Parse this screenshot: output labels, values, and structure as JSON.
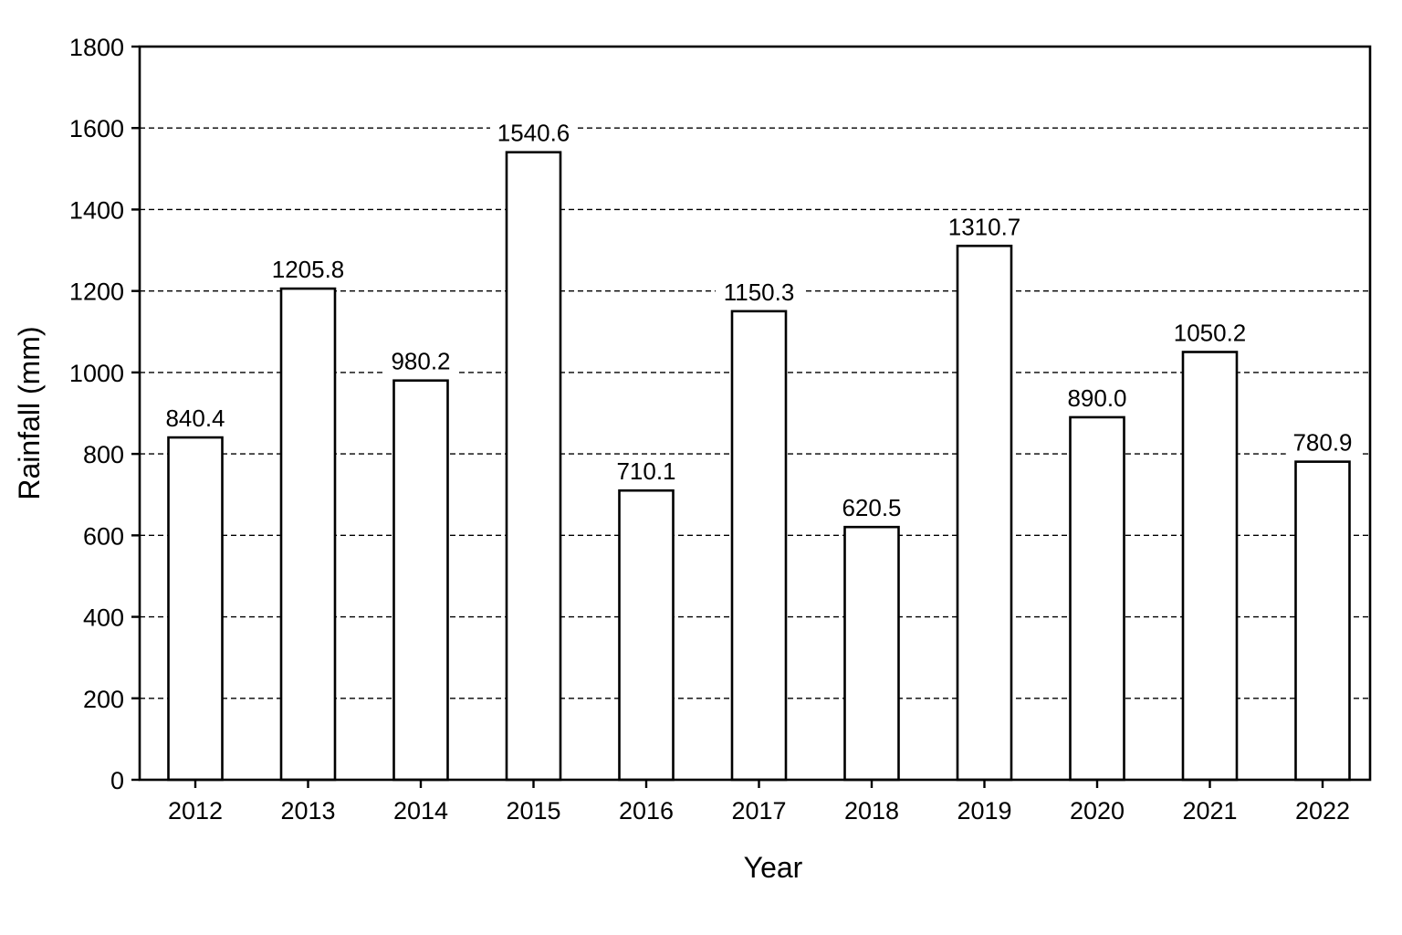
{
  "chart_data": {
    "type": "bar",
    "title": "",
    "xlabel": "Year",
    "ylabel": "Rainfall (mm)",
    "categories": [
      "2012",
      "2013",
      "2014",
      "2015",
      "2016",
      "2017",
      "2018",
      "2019",
      "2020",
      "2021",
      "2022"
    ],
    "values": [
      840.4,
      1205.8,
      980.2,
      1540.6,
      710.1,
      1150.3,
      620.5,
      1310.7,
      890.0,
      1050.2,
      780.9
    ],
    "value_labels": [
      "840.4",
      "1205.8",
      "980.2",
      "1540.6",
      "710.1",
      "1150.3",
      "620.5",
      "1310.7",
      "890.0",
      "1050.2",
      "780.9"
    ],
    "ylim": [
      0,
      1800
    ],
    "yticks": [
      "0",
      "200",
      "400",
      "600",
      "800",
      "1000",
      "1200",
      "1400",
      "1600",
      "1800"
    ],
    "grid": true,
    "grid_style": "dashed horizontal",
    "legend": "none",
    "colors": {
      "bar_fill": "#ffffff",
      "bar_edge": "#000000",
      "grid": "#000000",
      "text": "#000000"
    }
  }
}
